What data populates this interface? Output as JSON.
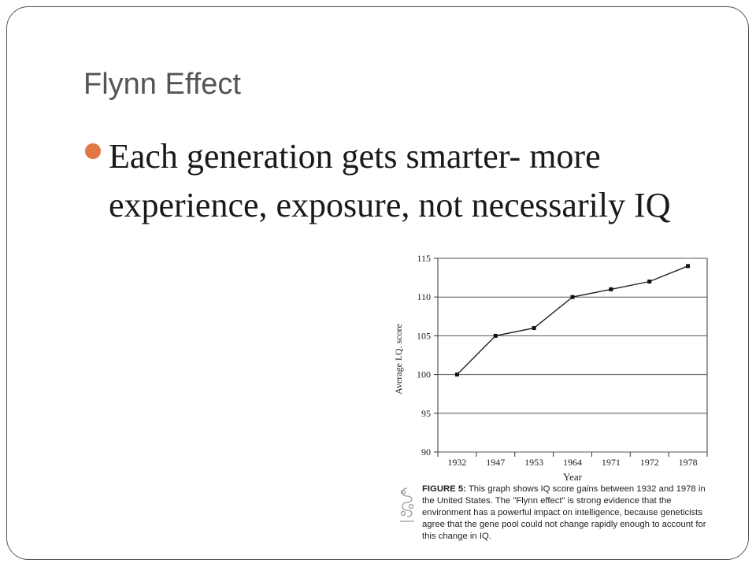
{
  "slide": {
    "title": "Flynn Effect",
    "bullet": "Each generation gets smarter- more experience, exposure, not necessarily IQ"
  },
  "accent_color": "#e07845",
  "chart_data": {
    "type": "line",
    "categories": [
      "1932",
      "1947",
      "1953",
      "1964",
      "1971",
      "1972",
      "1978"
    ],
    "values": [
      100,
      105,
      106,
      110,
      111,
      112,
      114
    ],
    "xlabel": "Year",
    "ylabel": "Average I.Q. score",
    "ylim": [
      90,
      115
    ],
    "yticks": [
      90,
      95,
      100,
      105,
      110,
      115
    ],
    "grid": true,
    "marker": "square"
  },
  "caption": {
    "label": "FIGURE 5:",
    "text": "This graph shows IQ score gains between 1932 and 1978 in the United States. The \"Flynn effect\" is strong evidence that the environment has a powerful impact on intelligence, because geneticists agree that the gene pool could not change rapidly enough to account for this change in IQ."
  },
  "ornament_icon": "decorative-scroll-icon"
}
